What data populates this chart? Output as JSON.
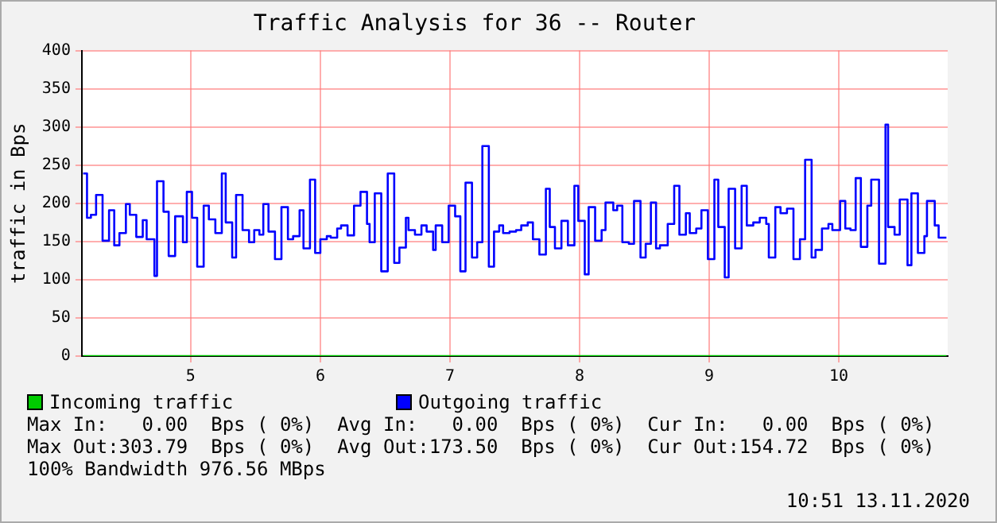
{
  "chart_data": {
    "type": "step",
    "title": "Traffic Analysis for 36 -- Router",
    "ylabel": "traffic in Bps",
    "xlim": [
      4.16,
      10.84
    ],
    "xticks": [
      5,
      6,
      7,
      8,
      9,
      10
    ],
    "ylim": [
      0,
      400
    ],
    "yticks": [
      0,
      50,
      100,
      150,
      200,
      250,
      300,
      350,
      400
    ],
    "grid": true,
    "legend": "bottom",
    "marker": "none",
    "series": [
      {
        "name": "Incoming traffic",
        "color": "#00cc00",
        "x": [
          4.17,
          10.83
        ],
        "values": [
          0,
          0
        ]
      },
      {
        "name": "Outgoing traffic",
        "color": "#0000ff",
        "x": [
          4.17,
          4.2,
          4.23,
          4.27,
          4.32,
          4.37,
          4.41,
          4.45,
          4.5,
          4.53,
          4.58,
          4.63,
          4.66,
          4.72,
          4.74,
          4.79,
          4.83,
          4.88,
          4.94,
          4.97,
          5.01,
          5.05,
          5.1,
          5.14,
          5.19,
          5.24,
          5.27,
          5.32,
          5.35,
          5.4,
          5.45,
          5.49,
          5.53,
          5.56,
          5.6,
          5.65,
          5.7,
          5.75,
          5.79,
          5.84,
          5.87,
          5.92,
          5.96,
          6,
          6.05,
          6.08,
          6.13,
          6.16,
          6.21,
          6.26,
          6.31,
          6.36,
          6.38,
          6.42,
          6.47,
          6.52,
          6.57,
          6.61,
          6.66,
          6.68,
          6.73,
          6.78,
          6.82,
          6.87,
          6.89,
          6.94,
          6.99,
          7.04,
          7.08,
          7.12,
          7.17,
          7.21,
          7.25,
          7.3,
          7.34,
          7.38,
          7.41,
          7.46,
          7.51,
          7.55,
          7.6,
          7.64,
          7.69,
          7.74,
          7.77,
          7.81,
          7.86,
          7.91,
          7.96,
          7.99,
          8.04,
          8.07,
          8.12,
          8.17,
          8.2,
          8.26,
          8.29,
          8.33,
          8.38,
          8.42,
          8.47,
          8.51,
          8.55,
          8.59,
          8.62,
          8.68,
          8.73,
          8.77,
          8.82,
          8.85,
          8.9,
          8.94,
          8.99,
          9.04,
          9.07,
          9.12,
          9.15,
          9.2,
          9.25,
          9.29,
          9.34,
          9.39,
          9.44,
          9.46,
          9.51,
          9.55,
          9.6,
          9.65,
          9.7,
          9.74,
          9.79,
          9.82,
          9.87,
          9.92,
          9.95,
          10.01,
          10.05,
          10.09,
          10.13,
          10.17,
          10.22,
          10.25,
          10.31,
          10.36,
          10.38,
          10.43,
          10.47,
          10.53,
          10.56,
          10.61,
          10.66,
          10.68,
          10.74,
          10.77,
          10.83
        ],
        "values": [
          239,
          181,
          185,
          211,
          151,
          191,
          145,
          161,
          199,
          185,
          156,
          178,
          153,
          105,
          229,
          189,
          131,
          183,
          149,
          215,
          181,
          117,
          197,
          179,
          161,
          239,
          175,
          129,
          211,
          165,
          149,
          165,
          159,
          199,
          163,
          127,
          195,
          153,
          157,
          191,
          141,
          231,
          135,
          153,
          157,
          155,
          167,
          171,
          158,
          197,
          215,
          173,
          149,
          213,
          111,
          239,
          122,
          142,
          181,
          165,
          159,
          171,
          163,
          139,
          171,
          149,
          197,
          183,
          111,
          227,
          129,
          149,
          275,
          117,
          163,
          171,
          161,
          163,
          165,
          171,
          175,
          153,
          133,
          219,
          169,
          141,
          177,
          145,
          223,
          177,
          107,
          195,
          151,
          165,
          201,
          191,
          197,
          149,
          147,
          203,
          129,
          147,
          201,
          141,
          145,
          173,
          223,
          159,
          187,
          161,
          167,
          191,
          127,
          231,
          169,
          103,
          219,
          141,
          223,
          171,
          175,
          181,
          173,
          129,
          195,
          187,
          193,
          127,
          153,
          257,
          129,
          139,
          167,
          173,
          165,
          203,
          167,
          165,
          233,
          143,
          197,
          231,
          121,
          303,
          169,
          159,
          205,
          119,
          213,
          135,
          157,
          203,
          171,
          155,
          155
        ]
      }
    ],
    "annotations": [
      "Max In:   0.00  Bps ( 0%)  Avg In:   0.00  Bps ( 0%)  Cur In:   0.00  Bps ( 0%)",
      "Max Out:303.79  Bps ( 0%)  Avg Out:173.50  Bps ( 0%)  Cur Out:154.72  Bps ( 0%)",
      "100% Bandwidth 976.56 MBps",
      "10:51 13.11.2020"
    ]
  }
}
